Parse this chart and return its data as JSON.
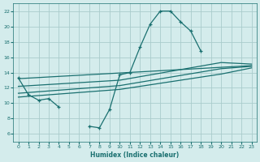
{
  "background_color": "#d4ecec",
  "grid_color": "#aacccc",
  "line_color": "#1a7070",
  "xlabel": "Humidex (Indice chaleur)",
  "xlim": [
    -0.5,
    23.5
  ],
  "ylim": [
    5,
    23
  ],
  "xticks": [
    0,
    1,
    2,
    3,
    4,
    5,
    6,
    7,
    8,
    9,
    10,
    11,
    12,
    13,
    14,
    15,
    16,
    17,
    18,
    19,
    20,
    21,
    22,
    23
  ],
  "yticks": [
    6,
    8,
    10,
    12,
    14,
    16,
    18,
    20,
    22
  ],
  "curve1_x": [
    0,
    1,
    2,
    3,
    4,
    5,
    6,
    7,
    8,
    9,
    10,
    11,
    12,
    13,
    14,
    15,
    16,
    17,
    18
  ],
  "curve1_y": [
    13.3,
    11.1,
    10.4,
    10.6,
    9.5,
    null,
    null,
    7.0,
    6.8,
    9.2,
    13.7,
    14.0,
    17.3,
    20.3,
    22.0,
    22.0,
    20.6,
    19.4,
    16.8
  ],
  "line1_x": [
    0,
    23
  ],
  "line1_y": [
    13.2,
    14.9
  ],
  "line2_x": [
    0,
    10,
    20,
    23
  ],
  "line2_y": [
    12.2,
    13.0,
    15.3,
    15.1
  ],
  "line3_x": [
    0,
    10,
    20,
    23
  ],
  "line3_y": [
    11.3,
    12.3,
    14.5,
    14.8
  ],
  "line4_x": [
    0,
    10,
    20,
    23
  ],
  "line4_y": [
    10.8,
    11.8,
    13.8,
    14.6
  ]
}
